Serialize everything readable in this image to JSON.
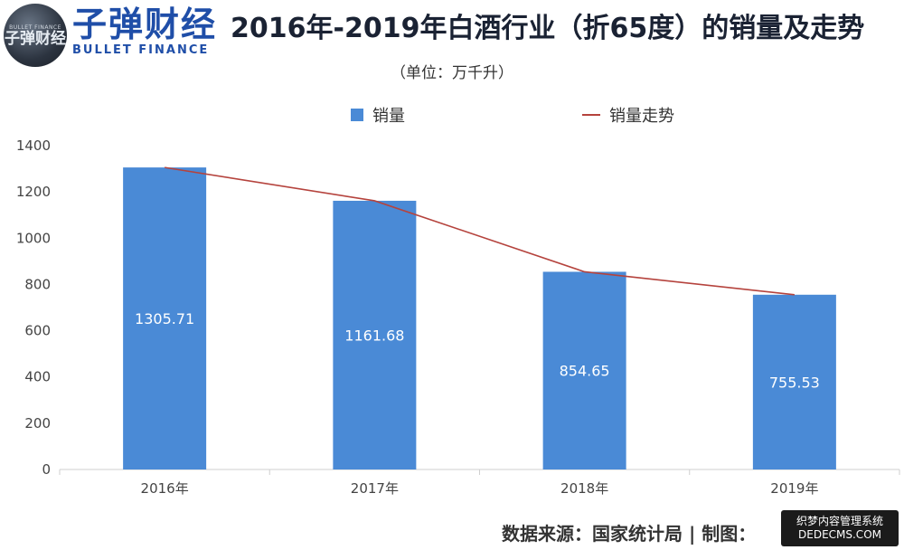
{
  "brand": {
    "logo_small": "BULLET FINANCE",
    "logo_big": "子弹财经",
    "name": "子弹财经",
    "subtitle": "BULLET FINANCE"
  },
  "footer": {
    "source": "数据来源：国家统计局   |   制图："
  },
  "watermark": {
    "line1": "织梦内容管理系统",
    "line2": "DEDECMS.COM"
  },
  "colors": {
    "bar": "#4a8ad6",
    "line": "#b5433d"
  },
  "chart_data": {
    "type": "bar",
    "title": "2016年-2019年白酒行业（折65度）的销量及走势",
    "subtitle": "（单位：万千升）",
    "categories": [
      "2016年",
      "2017年",
      "2018年",
      "2019年"
    ],
    "series": [
      {
        "name": "销量",
        "type": "bar",
        "values": [
          1305.71,
          1161.68,
          854.65,
          755.53
        ]
      },
      {
        "name": "销量走势",
        "type": "line",
        "values": [
          1305.71,
          1161.68,
          854.65,
          755.53
        ]
      }
    ],
    "data_labels": [
      "1305.71",
      "1161.68",
      "854.65",
      "755.53"
    ],
    "ylim": [
      0,
      1400
    ],
    "yticks": [
      0,
      200,
      400,
      600,
      800,
      1000,
      1200,
      1400
    ],
    "grid": false,
    "legend": "top-center"
  }
}
